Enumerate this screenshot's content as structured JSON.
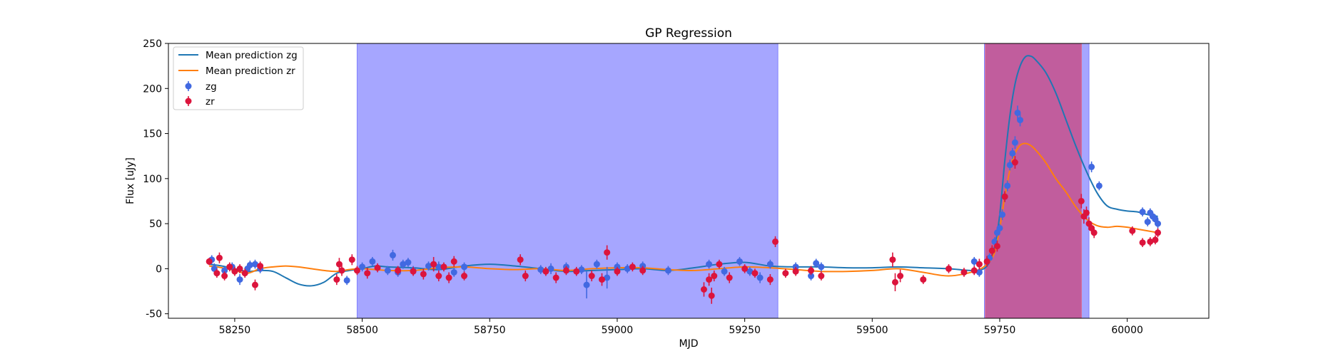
{
  "chart_data": {
    "type": "scatter",
    "title": "GP Regression",
    "xlabel": "MJD",
    "ylabel": "Flux [uJy]",
    "xlim": [
      58120,
      60160
    ],
    "ylim": [
      -55,
      250
    ],
    "xticks": [
      58250,
      58500,
      58750,
      59000,
      59250,
      59500,
      59750,
      60000
    ],
    "yticks": [
      -50,
      0,
      50,
      100,
      150,
      200,
      250
    ],
    "grid": false,
    "legend_position": "top-left",
    "colors": {
      "zg": "#4169e1",
      "zr": "#dc143c",
      "mean_zg": "#1f77b4",
      "mean_zr": "#ff7f0e",
      "band_blue": "#a6a6ff",
      "band_red": "#dc143c"
    },
    "shaded_regions": [
      {
        "x0": 58490,
        "x1": 59315,
        "color": "blue",
        "opacity": 0.6
      },
      {
        "x0": 59720,
        "x1": 59925,
        "color": "blue",
        "opacity": 0.6
      },
      {
        "x0": 59722,
        "x1": 59910,
        "color": "red",
        "opacity": 0.5
      }
    ],
    "series": [
      {
        "name": "Mean prediction zg",
        "kind": "line",
        "color": "#1f77b4",
        "x": [
          58200,
          58225,
          58250,
          58275,
          58300,
          58325,
          58350,
          58375,
          58400,
          58425,
          58450,
          58475,
          58500,
          58525,
          58550,
          58600,
          58650,
          58700,
          58750,
          58800,
          58850,
          58900,
          58950,
          59000,
          59050,
          59100,
          59150,
          59200,
          59250,
          59300,
          59350,
          59400,
          59450,
          59500,
          59550,
          59600,
          59650,
          59700,
          59725,
          59740,
          59750,
          59760,
          59770,
          59780,
          59790,
          59800,
          59810,
          59820,
          59840,
          59860,
          59880,
          59900,
          59920,
          59940,
          59960,
          59980,
          60000,
          60020,
          60040,
          60060
        ],
        "y": [
          5,
          3,
          0,
          -3,
          -2,
          -3,
          -10,
          -17,
          -19,
          -15,
          -5,
          -2,
          0,
          3,
          2,
          1,
          -1,
          3,
          5,
          3,
          0,
          -3,
          -2,
          -1,
          0,
          -2,
          1,
          5,
          7,
          3,
          2,
          2,
          1,
          1,
          2,
          1,
          0,
          -2,
          3,
          25,
          60,
          120,
          170,
          205,
          225,
          235,
          236,
          232,
          218,
          195,
          165,
          135,
          108,
          85,
          70,
          66,
          64,
          63,
          60,
          58
        ]
      },
      {
        "name": "Mean prediction zr",
        "kind": "line",
        "color": "#ff7f0e",
        "x": [
          58200,
          58225,
          58250,
          58275,
          58300,
          58325,
          58350,
          58375,
          58400,
          58425,
          58450,
          58475,
          58500,
          58550,
          58600,
          58650,
          58700,
          58750,
          58800,
          58850,
          58900,
          58950,
          59000,
          59050,
          59100,
          59150,
          59200,
          59250,
          59300,
          59350,
          59400,
          59450,
          59500,
          59550,
          59600,
          59650,
          59700,
          59725,
          59740,
          59750,
          59760,
          59770,
          59780,
          59790,
          59800,
          59810,
          59820,
          59840,
          59860,
          59880,
          59900,
          59920,
          59940,
          59960,
          59980,
          60000,
          60020,
          60040,
          60060
        ],
        "y": [
          3,
          1,
          -2,
          -5,
          0,
          2,
          3,
          2,
          0,
          -2,
          -3,
          -1,
          0,
          -2,
          -2,
          1,
          2,
          0,
          -1,
          0,
          -2,
          0,
          1,
          1,
          -1,
          -2,
          0,
          2,
          1,
          -1,
          -3,
          -3,
          -2,
          0,
          -4,
          -8,
          -3,
          5,
          18,
          45,
          80,
          110,
          128,
          137,
          139,
          137,
          132,
          118,
          100,
          85,
          68,
          55,
          48,
          46,
          47,
          46,
          44,
          42,
          40
        ]
      },
      {
        "name": "zg",
        "kind": "errorbar",
        "color": "#4169e1",
        "points": [
          [
            58205,
            10,
            5
          ],
          [
            58210,
            0,
            6
          ],
          [
            58230,
            -2,
            4
          ],
          [
            58245,
            2,
            5
          ],
          [
            58260,
            -12,
            6
          ],
          [
            58275,
            0,
            5
          ],
          [
            58280,
            4,
            5
          ],
          [
            58290,
            5,
            5
          ],
          [
            58300,
            0,
            5
          ],
          [
            58470,
            -13,
            5
          ],
          [
            58500,
            2,
            5
          ],
          [
            58520,
            8,
            5
          ],
          [
            58550,
            -2,
            5
          ],
          [
            58560,
            15,
            6
          ],
          [
            58570,
            -4,
            5
          ],
          [
            58580,
            5,
            5
          ],
          [
            58590,
            7,
            5
          ],
          [
            58600,
            -2,
            5
          ],
          [
            58630,
            3,
            5
          ],
          [
            58650,
            2,
            6
          ],
          [
            58680,
            -4,
            5
          ],
          [
            58700,
            2,
            5
          ],
          [
            58850,
            -1,
            5
          ],
          [
            58870,
            0,
            6
          ],
          [
            58900,
            2,
            5
          ],
          [
            58930,
            -1,
            5
          ],
          [
            58940,
            -18,
            15
          ],
          [
            58960,
            5,
            5
          ],
          [
            58980,
            -10,
            12
          ],
          [
            59000,
            2,
            5
          ],
          [
            59020,
            0,
            5
          ],
          [
            59050,
            3,
            5
          ],
          [
            59100,
            -2,
            5
          ],
          [
            59180,
            5,
            5
          ],
          [
            59210,
            -3,
            5
          ],
          [
            59240,
            8,
            5
          ],
          [
            59260,
            -3,
            5
          ],
          [
            59280,
            -10,
            6
          ],
          [
            59300,
            5,
            5
          ],
          [
            59350,
            2,
            5
          ],
          [
            59380,
            -8,
            5
          ],
          [
            59390,
            6,
            5
          ],
          [
            59400,
            2,
            5
          ],
          [
            59700,
            8,
            5
          ],
          [
            59710,
            -4,
            5
          ],
          [
            59730,
            12,
            5
          ],
          [
            59740,
            30,
            5
          ],
          [
            59745,
            40,
            5
          ],
          [
            59750,
            45,
            5
          ],
          [
            59755,
            60,
            6
          ],
          [
            59760,
            80,
            6
          ],
          [
            59765,
            92,
            6
          ],
          [
            59770,
            115,
            6
          ],
          [
            59775,
            128,
            6
          ],
          [
            59780,
            140,
            7
          ],
          [
            59785,
            173,
            8
          ],
          [
            59790,
            165,
            7
          ],
          [
            59930,
            113,
            6
          ],
          [
            59945,
            92,
            5
          ],
          [
            60030,
            63,
            5
          ],
          [
            60040,
            52,
            5
          ],
          [
            60045,
            62,
            5
          ],
          [
            60050,
            58,
            5
          ],
          [
            60055,
            55,
            5
          ],
          [
            60060,
            50,
            5
          ]
        ]
      },
      {
        "name": "zr",
        "kind": "errorbar",
        "color": "#dc143c",
        "points": [
          [
            58200,
            8,
            4
          ],
          [
            58215,
            -5,
            5
          ],
          [
            58220,
            12,
            6
          ],
          [
            58230,
            -8,
            5
          ],
          [
            58240,
            2,
            5
          ],
          [
            58250,
            -3,
            5
          ],
          [
            58260,
            0,
            5
          ],
          [
            58270,
            -5,
            5
          ],
          [
            58290,
            -18,
            6
          ],
          [
            58300,
            3,
            5
          ],
          [
            58450,
            -12,
            6
          ],
          [
            58455,
            5,
            7
          ],
          [
            58460,
            -2,
            6
          ],
          [
            58480,
            10,
            6
          ],
          [
            58490,
            -2,
            5
          ],
          [
            58510,
            -5,
            6
          ],
          [
            58530,
            1,
            5
          ],
          [
            58570,
            -2,
            5
          ],
          [
            58600,
            -3,
            5
          ],
          [
            58620,
            -6,
            6
          ],
          [
            58640,
            5,
            8
          ],
          [
            58650,
            -8,
            6
          ],
          [
            58660,
            2,
            5
          ],
          [
            58670,
            -10,
            6
          ],
          [
            58680,
            8,
            6
          ],
          [
            58700,
            -8,
            5
          ],
          [
            58810,
            10,
            6
          ],
          [
            58820,
            -8,
            6
          ],
          [
            58860,
            -3,
            5
          ],
          [
            58880,
            -10,
            6
          ],
          [
            58900,
            -2,
            5
          ],
          [
            58920,
            -3,
            5
          ],
          [
            58950,
            -8,
            6
          ],
          [
            58970,
            -12,
            7
          ],
          [
            58980,
            18,
            8
          ],
          [
            59000,
            -3,
            5
          ],
          [
            59030,
            2,
            5
          ],
          [
            59050,
            -2,
            5
          ],
          [
            59170,
            -23,
            8
          ],
          [
            59180,
            -12,
            7
          ],
          [
            59185,
            -30,
            9
          ],
          [
            59190,
            -8,
            6
          ],
          [
            59200,
            5,
            5
          ],
          [
            59220,
            -10,
            6
          ],
          [
            59250,
            0,
            5
          ],
          [
            59270,
            -5,
            5
          ],
          [
            59300,
            -12,
            6
          ],
          [
            59310,
            30,
            6
          ],
          [
            59330,
            -5,
            5
          ],
          [
            59350,
            -3,
            5
          ],
          [
            59380,
            -2,
            5
          ],
          [
            59400,
            -8,
            5
          ],
          [
            59540,
            10,
            8
          ],
          [
            59545,
            -15,
            10
          ],
          [
            59555,
            -8,
            7
          ],
          [
            59600,
            -12,
            5
          ],
          [
            59650,
            0,
            5
          ],
          [
            59680,
            -4,
            5
          ],
          [
            59700,
            -2,
            5
          ],
          [
            59710,
            5,
            6
          ],
          [
            59725,
            8,
            6
          ],
          [
            59735,
            20,
            6
          ],
          [
            59745,
            25,
            6
          ],
          [
            59760,
            80,
            6
          ],
          [
            59780,
            118,
            7
          ],
          [
            59910,
            75,
            8
          ],
          [
            59915,
            58,
            8
          ],
          [
            59920,
            62,
            7
          ],
          [
            59925,
            50,
            7
          ],
          [
            59930,
            45,
            6
          ],
          [
            59935,
            40,
            6
          ],
          [
            60010,
            42,
            5
          ],
          [
            60030,
            29,
            5
          ],
          [
            60045,
            30,
            5
          ],
          [
            60055,
            32,
            5
          ],
          [
            60060,
            40,
            5
          ]
        ]
      }
    ]
  }
}
